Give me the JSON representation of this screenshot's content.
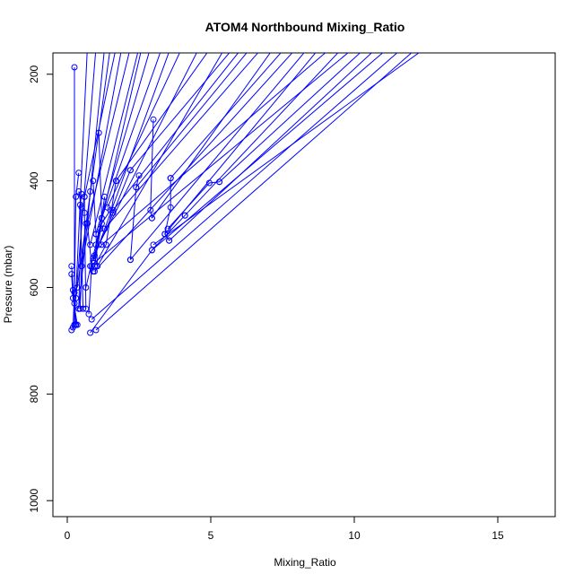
{
  "chart_data": {
    "type": "line",
    "title": "ATOM4 Northbound Mixing_Ratio",
    "xlabel": "Mixing_Ratio",
    "ylabel": "Pressure (mbar)",
    "xlim": [
      -0.5,
      17
    ],
    "ylim": [
      1030,
      160
    ],
    "y_reversed": true,
    "xticks": [
      0,
      5,
      10,
      15
    ],
    "yticks": [
      200,
      400,
      600,
      800,
      1000
    ],
    "grid": false,
    "legend": "none",
    "color": "#0000ff",
    "marker": "open-circle",
    "series": [
      {
        "points": [
          [
            0.25,
            187
          ],
          [
            0.25,
            670
          ]
        ]
      },
      {
        "points": [
          [
            0.15,
            560
          ],
          [
            0.3,
            670
          ],
          [
            0.15,
            680
          ]
        ]
      },
      {
        "points": [
          [
            0.2,
            605
          ],
          [
            0.25,
            630
          ],
          [
            0.3,
            670
          ]
        ]
      },
      {
        "points": [
          [
            0.15,
            575
          ],
          [
            0.2,
            620
          ],
          [
            0.35,
            670
          ]
        ]
      },
      {
        "points": [
          [
            0.4,
            385
          ],
          [
            0.3,
            430
          ],
          [
            0.25,
            610
          ],
          [
            0.2,
            675
          ]
        ]
      },
      {
        "points": [
          [
            0.4,
            420
          ],
          [
            0.5,
            450
          ],
          [
            0.4,
            640
          ]
        ]
      },
      {
        "points": [
          [
            0.5,
            425
          ],
          [
            0.45,
            445
          ],
          [
            0.55,
            640
          ]
        ]
      },
      {
        "points": [
          [
            0.6,
            430
          ],
          [
            0.6,
            460
          ],
          [
            0.65,
            640
          ]
        ]
      },
      {
        "points": [
          [
            0.65,
            480
          ],
          [
            0.5,
            560
          ],
          [
            0.45,
            640
          ]
        ]
      },
      {
        "points": [
          [
            0.8,
            420
          ],
          [
            0.7,
            480
          ],
          [
            0.85,
            560
          ],
          [
            0.75,
            650
          ]
        ]
      },
      {
        "points": [
          [
            0.9,
            400
          ],
          [
            1.0,
            500
          ],
          [
            1.05,
            560
          ]
        ]
      },
      {
        "points": [
          [
            1.1,
            310
          ],
          [
            1.2,
            470
          ],
          [
            1.0,
            520
          ]
        ]
      },
      {
        "points": [
          [
            1.3,
            430
          ],
          [
            1.15,
            490
          ],
          [
            0.95,
            540
          ]
        ]
      },
      {
        "points": [
          [
            1.5,
            455
          ],
          [
            1.2,
            480
          ],
          [
            0.9,
            570
          ]
        ]
      },
      {
        "points": [
          [
            1.7,
            400
          ],
          [
            1.35,
            520
          ],
          [
            0.95,
            560
          ]
        ]
      },
      {
        "points": [
          [
            2.2,
            380
          ],
          [
            1.6,
            460
          ],
          [
            0.9,
            545
          ]
        ]
      },
      {
        "points": [
          [
            2.5,
            390
          ],
          [
            2.4,
            412
          ],
          [
            2.2,
            548
          ]
        ]
      },
      {
        "points": [
          [
            3.0,
            285
          ],
          [
            2.9,
            455
          ],
          [
            2.95,
            470
          ]
        ]
      },
      {
        "points": [
          [
            3.6,
            395
          ],
          [
            3.6,
            450
          ],
          [
            3.4,
            500
          ],
          [
            3.55,
            512
          ]
        ]
      },
      {
        "points": [
          [
            4.1,
            465
          ],
          [
            2.95,
            530
          ],
          [
            0.8,
            685
          ]
        ]
      },
      {
        "points": [
          [
            5.3,
            402
          ],
          [
            4.95,
            404
          ],
          [
            3.5,
            490
          ]
        ]
      },
      {
        "points": [
          [
            0.7,
            150
          ],
          [
            0.25,
            670
          ]
        ]
      },
      {
        "points": [
          [
            1.0,
            150
          ],
          [
            0.3,
            620
          ]
        ]
      },
      {
        "points": [
          [
            1.3,
            150
          ],
          [
            0.4,
            640
          ]
        ]
      },
      {
        "points": [
          [
            1.5,
            150
          ],
          [
            0.35,
            600
          ]
        ]
      },
      {
        "points": [
          [
            1.7,
            150
          ],
          [
            0.6,
            430
          ]
        ]
      },
      {
        "points": [
          [
            1.9,
            150
          ],
          [
            0.5,
            560
          ]
        ]
      },
      {
        "points": [
          [
            2.2,
            150
          ],
          [
            0.7,
            480
          ]
        ]
      },
      {
        "points": [
          [
            2.5,
            150
          ],
          [
            0.8,
            520
          ]
        ]
      },
      {
        "points": [
          [
            2.6,
            150
          ],
          [
            0.65,
            600
          ]
        ]
      },
      {
        "points": [
          [
            2.9,
            150
          ],
          [
            1.0,
            500
          ]
        ]
      },
      {
        "points": [
          [
            3.3,
            150
          ],
          [
            1.2,
            470
          ]
        ]
      },
      {
        "points": [
          [
            3.6,
            150
          ],
          [
            0.9,
            550
          ]
        ]
      },
      {
        "points": [
          [
            4.0,
            150
          ],
          [
            1.4,
            450
          ]
        ]
      },
      {
        "points": [
          [
            4.6,
            150
          ],
          [
            1.1,
            520
          ]
        ]
      },
      {
        "points": [
          [
            5.0,
            150
          ],
          [
            1.7,
            400
          ]
        ]
      },
      {
        "points": [
          [
            5.5,
            150
          ],
          [
            1.05,
            560
          ]
        ]
      },
      {
        "points": [
          [
            5.8,
            150
          ],
          [
            2.2,
            380
          ]
        ]
      },
      {
        "points": [
          [
            6.1,
            150
          ],
          [
            1.6,
            455
          ]
        ]
      },
      {
        "points": [
          [
            6.4,
            150
          ],
          [
            2.4,
            412
          ]
        ]
      },
      {
        "points": [
          [
            6.8,
            150
          ],
          [
            1.3,
            490
          ]
        ]
      },
      {
        "points": [
          [
            7.2,
            150
          ],
          [
            2.95,
            470
          ]
        ]
      },
      {
        "points": [
          [
            7.6,
            150
          ],
          [
            3.6,
            395
          ]
        ]
      },
      {
        "points": [
          [
            8.0,
            150
          ],
          [
            0.95,
            570
          ]
        ]
      },
      {
        "points": [
          [
            8.4,
            150
          ],
          [
            2.2,
            548
          ]
        ]
      },
      {
        "points": [
          [
            8.8,
            150
          ],
          [
            3.4,
            500
          ]
        ]
      },
      {
        "points": [
          [
            9.2,
            150
          ],
          [
            1.2,
            520
          ]
        ]
      },
      {
        "points": [
          [
            9.6,
            150
          ],
          [
            4.1,
            465
          ]
        ]
      },
      {
        "points": [
          [
            10.0,
            150
          ],
          [
            0.8,
            560
          ]
        ]
      },
      {
        "points": [
          [
            10.4,
            150
          ],
          [
            5.3,
            402
          ]
        ]
      },
      {
        "points": [
          [
            10.8,
            150
          ],
          [
            3.55,
            512
          ]
        ]
      },
      {
        "points": [
          [
            11.2,
            150
          ],
          [
            2.95,
            530
          ]
        ]
      },
      {
        "points": [
          [
            11.7,
            150
          ],
          [
            0.85,
            660
          ]
        ]
      },
      {
        "points": [
          [
            12.2,
            150
          ],
          [
            1.0,
            680
          ]
        ]
      },
      {
        "points": [
          [
            12.5,
            150
          ],
          [
            3.0,
            520
          ]
        ]
      }
    ]
  }
}
